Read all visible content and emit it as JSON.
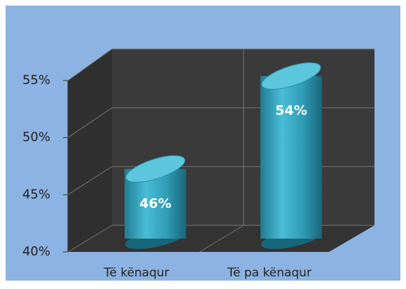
{
  "chart_data": {
    "type": "bar3d",
    "categories": [
      "Të kënaqur",
      "Të pa kënaqur"
    ],
    "values": [
      46,
      54
    ],
    "value_labels": [
      "46%",
      "54%"
    ],
    "color": "#3fb2cc",
    "ylim": [
      40,
      55
    ],
    "yticks": [
      {
        "value": 40,
        "label": "40%"
      },
      {
        "value": 45,
        "label": "45%"
      },
      {
        "value": 50,
        "label": "50%"
      },
      {
        "value": 55,
        "label": "55%"
      }
    ],
    "grid": true
  }
}
